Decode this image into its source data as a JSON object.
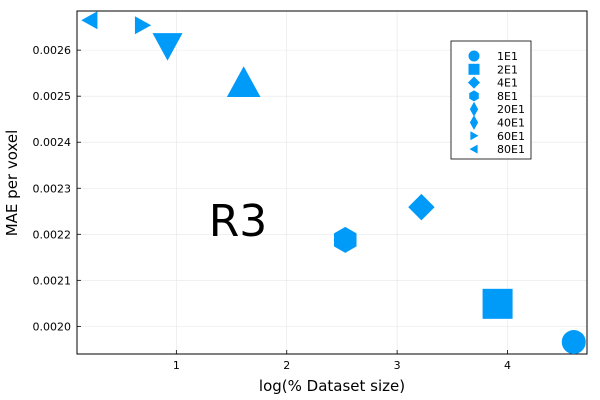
{
  "chart_data": {
    "type": "scatter",
    "title": "",
    "xlabel": "log(% Dataset size)",
    "ylabel": "MAE per voxel",
    "xlim": [
      0.1,
      4.72
    ],
    "ylim": [
      0.00194,
      0.002685
    ],
    "grid": true,
    "legend_position": "top-right",
    "xticks": [
      {
        "value": 1,
        "label": "1"
      },
      {
        "value": 2,
        "label": "2"
      },
      {
        "value": 3,
        "label": "3"
      },
      {
        "value": 4,
        "label": "4"
      }
    ],
    "yticks": [
      {
        "value": 0.002,
        "label": "0.0020"
      },
      {
        "value": 0.0021,
        "label": "0.0021"
      },
      {
        "value": 0.0022,
        "label": "0.0022"
      },
      {
        "value": 0.0023,
        "label": "0.0023"
      },
      {
        "value": 0.0024,
        "label": "0.0024"
      },
      {
        "value": 0.0025,
        "label": "0.0025"
      },
      {
        "value": 0.0026,
        "label": "0.0026"
      }
    ],
    "series": [
      {
        "name": "1E1",
        "marker": "circle",
        "x": 4.6,
        "y": 0.001966
      },
      {
        "name": "2E1",
        "marker": "square",
        "x": 3.91,
        "y": 0.002049
      },
      {
        "name": "4E1",
        "marker": "hexagon",
        "x": 2.53,
        "y": 0.002188
      },
      {
        "name": "8E1",
        "marker": "diamond",
        "x": 3.22,
        "y": 0.002259
      },
      {
        "name": "20E1",
        "marker": "triangle-up",
        "x": 1.61,
        "y": 0.002527
      },
      {
        "name": "40E1",
        "marker": "triangle-down",
        "x": 0.92,
        "y": 0.002611
      },
      {
        "name": "60E1",
        "marker": "triangle-right",
        "x": 0.69,
        "y": 0.002654
      },
      {
        "name": "80E1",
        "marker": "triangle-left",
        "x": 0.22,
        "y": 0.002665
      }
    ],
    "legend_markers": [
      "circle",
      "square",
      "diamond",
      "hexagon",
      "diamond-tall",
      "diamond-tall",
      "triangle-right",
      "triangle-left"
    ],
    "annotation": "R3",
    "color": "#009af9"
  }
}
